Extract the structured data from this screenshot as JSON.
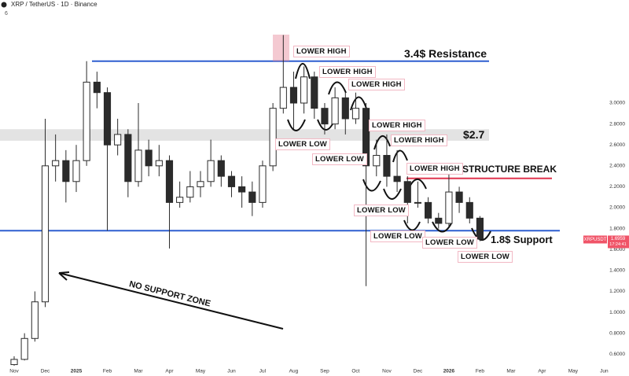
{
  "header": {
    "symbol": "XRP / TetherUS · 1D · Binance",
    "indicator": "6"
  },
  "chart_data": {
    "type": "candlestick",
    "x": [
      0,
      0.333,
      0.667,
      1,
      1.333,
      1.667,
      2,
      2.333,
      2.667,
      3,
      3.333,
      3.667,
      4,
      4.333,
      4.667,
      5,
      5.333,
      5.667,
      6,
      6.333,
      6.667,
      7,
      7.333,
      7.667,
      8,
      8.333,
      8.667,
      9,
      9.333,
      9.667,
      10,
      10.333,
      10.667,
      11,
      11.333,
      11.667,
      12,
      12.333,
      12.667,
      13,
      13.333,
      13.667,
      14,
      14.333,
      14.667,
      15
    ],
    "open": [
      0.5,
      0.55,
      0.75,
      1.1,
      2.4,
      2.45,
      2.25,
      2.45,
      3.2,
      3.1,
      2.6,
      2.7,
      2.25,
      2.55,
      2.4,
      2.45,
      2.05,
      2.1,
      2.2,
      2.25,
      2.45,
      2.3,
      2.2,
      2.15,
      2.05,
      2.4,
      2.95,
      3.15,
      3.0,
      3.25,
      2.95,
      2.8,
      3.05,
      2.85,
      2.95,
      2.4,
      2.5,
      2.3,
      2.25,
      2.05,
      2.05,
      1.9,
      1.85,
      2.15,
      2.05,
      1.9
    ],
    "high": [
      0.58,
      0.8,
      1.2,
      2.85,
      2.7,
      2.55,
      2.6,
      3.4,
      3.3,
      3.15,
      2.85,
      2.75,
      3.0,
      2.65,
      2.6,
      2.5,
      2.25,
      2.35,
      2.35,
      2.65,
      2.5,
      2.35,
      2.3,
      2.25,
      2.45,
      3.0,
      3.65,
      3.3,
      3.35,
      3.3,
      3.0,
      3.15,
      3.1,
      3.1,
      3.0,
      2.65,
      2.7,
      2.55,
      2.3,
      2.25,
      2.1,
      1.95,
      2.4,
      2.2,
      2.1,
      1.92
    ],
    "low": [
      0.49,
      0.54,
      0.72,
      1.05,
      2.25,
      2.05,
      2.15,
      2.4,
      2.95,
      1.78,
      2.5,
      2.1,
      2.2,
      2.3,
      2.3,
      1.61,
      2.0,
      2.05,
      2.1,
      2.2,
      2.2,
      2.1,
      2.0,
      1.92,
      2.0,
      2.35,
      2.9,
      2.75,
      2.9,
      2.85,
      2.7,
      2.75,
      2.7,
      2.8,
      1.25,
      2.3,
      2.2,
      2.15,
      1.85,
      2.0,
      1.85,
      1.8,
      1.82,
      1.95,
      1.85,
      1.68
    ],
    "close": [
      0.55,
      0.75,
      1.1,
      2.4,
      2.45,
      2.25,
      2.45,
      3.2,
      3.1,
      2.6,
      2.7,
      2.25,
      2.55,
      2.4,
      2.45,
      2.05,
      2.1,
      2.2,
      2.25,
      2.45,
      2.3,
      2.2,
      2.15,
      2.05,
      2.4,
      2.95,
      3.15,
      3.0,
      3.25,
      2.95,
      2.8,
      3.05,
      2.85,
      2.95,
      2.4,
      2.5,
      2.3,
      2.25,
      2.05,
      2.05,
      1.9,
      1.85,
      2.15,
      2.05,
      1.9,
      1.7
    ],
    "up_color": "#ffffff",
    "down_color": "#2b2b2b",
    "wick_color": "#2b2b2b",
    "xlim": [
      -0.456,
      19.8
    ],
    "xticks": [
      {
        "value": 0,
        "label": "Nov"
      },
      {
        "value": 1,
        "label": "Dec"
      },
      {
        "value": 2,
        "label": "2025"
      },
      {
        "value": 3,
        "label": "Feb"
      },
      {
        "value": 4,
        "label": "Mar"
      },
      {
        "value": 5,
        "label": "Apr"
      },
      {
        "value": 6,
        "label": "May"
      },
      {
        "value": 7,
        "label": "Jun"
      },
      {
        "value": 8,
        "label": "Jul"
      },
      {
        "value": 9,
        "label": "Aug"
      },
      {
        "value": 10,
        "label": "Sep"
      },
      {
        "value": 11,
        "label": "Oct"
      },
      {
        "value": 12,
        "label": "Nov"
      },
      {
        "value": 13,
        "label": "Dec"
      },
      {
        "value": 14,
        "label": "2026"
      },
      {
        "value": 15,
        "label": "Feb"
      },
      {
        "value": 16,
        "label": "Mar"
      },
      {
        "value": 17,
        "label": "Apr"
      },
      {
        "value": 18,
        "label": "May"
      },
      {
        "value": 19,
        "label": "Jun"
      }
    ],
    "ylim": [
      0.489,
      3.985
    ],
    "yticks": [
      {
        "value": 0.6,
        "label": "0.6000"
      },
      {
        "value": 0.8,
        "label": "0.8000"
      },
      {
        "value": 1,
        "label": "1.0000"
      },
      {
        "value": 1.2,
        "label": "1.2000"
      },
      {
        "value": 1.4,
        "label": "1.4000"
      },
      {
        "value": 1.6,
        "label": "1.6000"
      },
      {
        "value": 1.8,
        "label": "1.8000"
      },
      {
        "value": 2,
        "label": "2.0000"
      },
      {
        "value": 2.2,
        "label": "2.2000"
      },
      {
        "value": 2.4,
        "label": "2.4000"
      },
      {
        "value": 2.6,
        "label": "2.6000"
      },
      {
        "value": 2.8,
        "label": "2.8000"
      },
      {
        "value": 3,
        "label": "3.0000"
      }
    ],
    "resistance": {
      "label": "3.4$ Resistance",
      "value": 3.4,
      "color": "#2f5fd0"
    },
    "support": {
      "label": "1.8$ Support",
      "value": 1.78,
      "color": "#2f5fd0"
    },
    "zone": {
      "label": "$2.7",
      "low": 2.64,
      "high": 2.75,
      "color": "#d9d9d9"
    },
    "structure_break": {
      "label": "STRUCTURE BREAK",
      "value": 2.28,
      "color": "#e0344f"
    },
    "lower_highs": [
      "LOWER HIGH",
      "LOWER HIGH",
      "LOWER HIGH",
      "LOWER HIGH",
      "LOWER HIGH",
      "LOWER HIGH"
    ],
    "lower_lows": [
      "LOWER LOW",
      "LOWER LOW",
      "LOWER LOW",
      "LOWER LOW",
      "LOWER LOW",
      "LOWER LOW"
    ],
    "arrow_label": "NO SUPPORT ZONE",
    "last_price": {
      "symbol": "XRPUSDT",
      "value": 1.6959,
      "countdown": "17:24:41",
      "color": "#f05468"
    }
  }
}
